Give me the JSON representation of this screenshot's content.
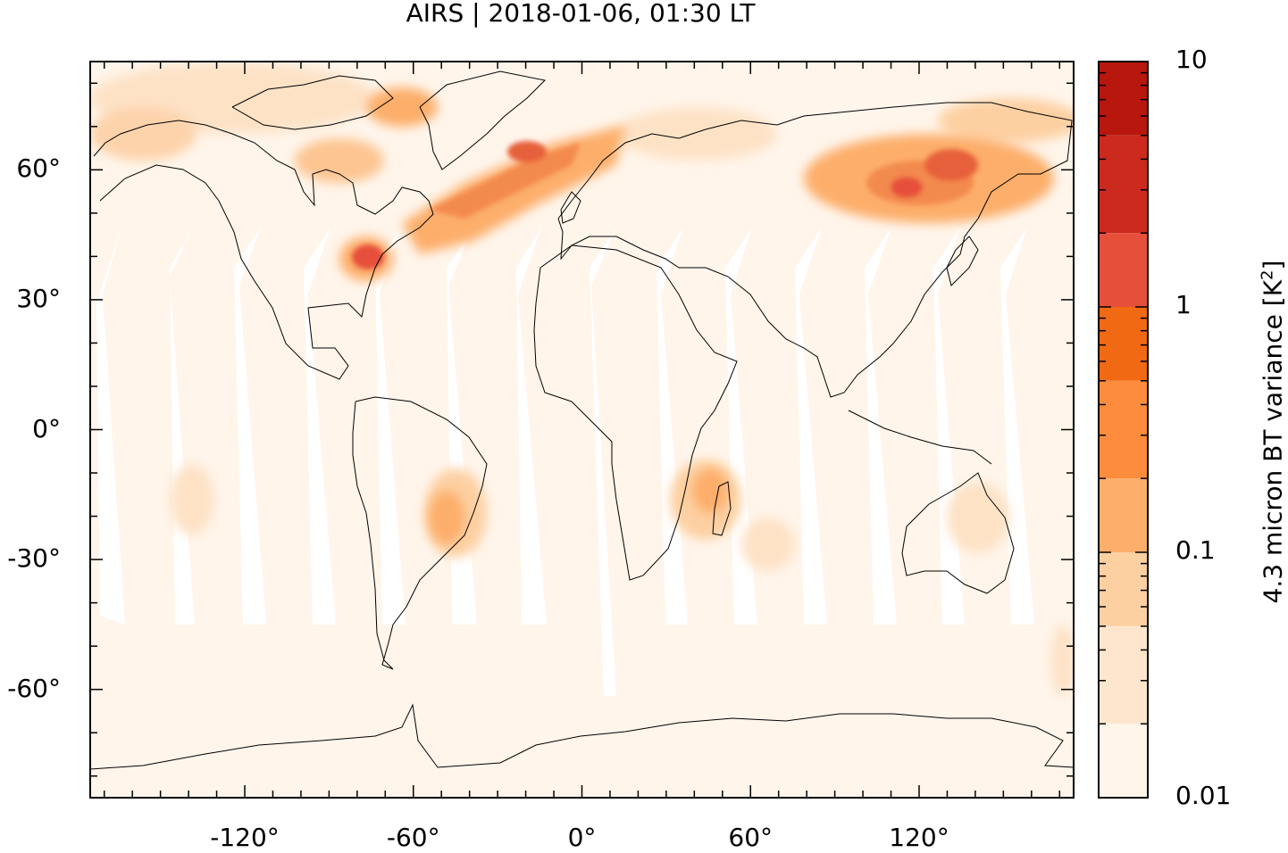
{
  "title": "AIRS | 2018-01-06, 01:30 LT",
  "colorbar": {
    "label_prefix": "4.3 micron BT variance [K",
    "label_sup": "2",
    "label_suffix": "]",
    "ticks": [
      "10",
      "1",
      "0.1",
      "0.01"
    ],
    "tick_values": [
      10,
      1,
      0.1,
      0.01
    ],
    "scale": "log",
    "levels": [
      0.01,
      0.02,
      0.05,
      0.1,
      0.2,
      0.5,
      1,
      2,
      5,
      10
    ],
    "colors": [
      "#fff5eb",
      "#fee6ce",
      "#fdd0a2",
      "#fdae6b",
      "#fd8d3c",
      "#f16913",
      "#e6503a",
      "#cc2a1e",
      "#b8170e",
      "#8b0000"
    ]
  },
  "axes": {
    "x_ticks": [
      {
        "value": -120,
        "label": "-120°"
      },
      {
        "value": -60,
        "label": "-60°"
      },
      {
        "value": 0,
        "label": "0°"
      },
      {
        "value": 60,
        "label": "60°"
      },
      {
        "value": 120,
        "label": "120°"
      }
    ],
    "y_ticks": [
      {
        "value": 60,
        "label": "60°"
      },
      {
        "value": 30,
        "label": "30°"
      },
      {
        "value": 0,
        "label": "0°"
      },
      {
        "value": -30,
        "label": "-30°"
      },
      {
        "value": -60,
        "label": "-60°"
      }
    ],
    "lon_range": [
      -175,
      175
    ],
    "lat_range": [
      -85,
      85
    ]
  },
  "map": {
    "projection": "equirectangular",
    "background_color": "#fff5eb",
    "coastline_color": "#000000"
  }
}
